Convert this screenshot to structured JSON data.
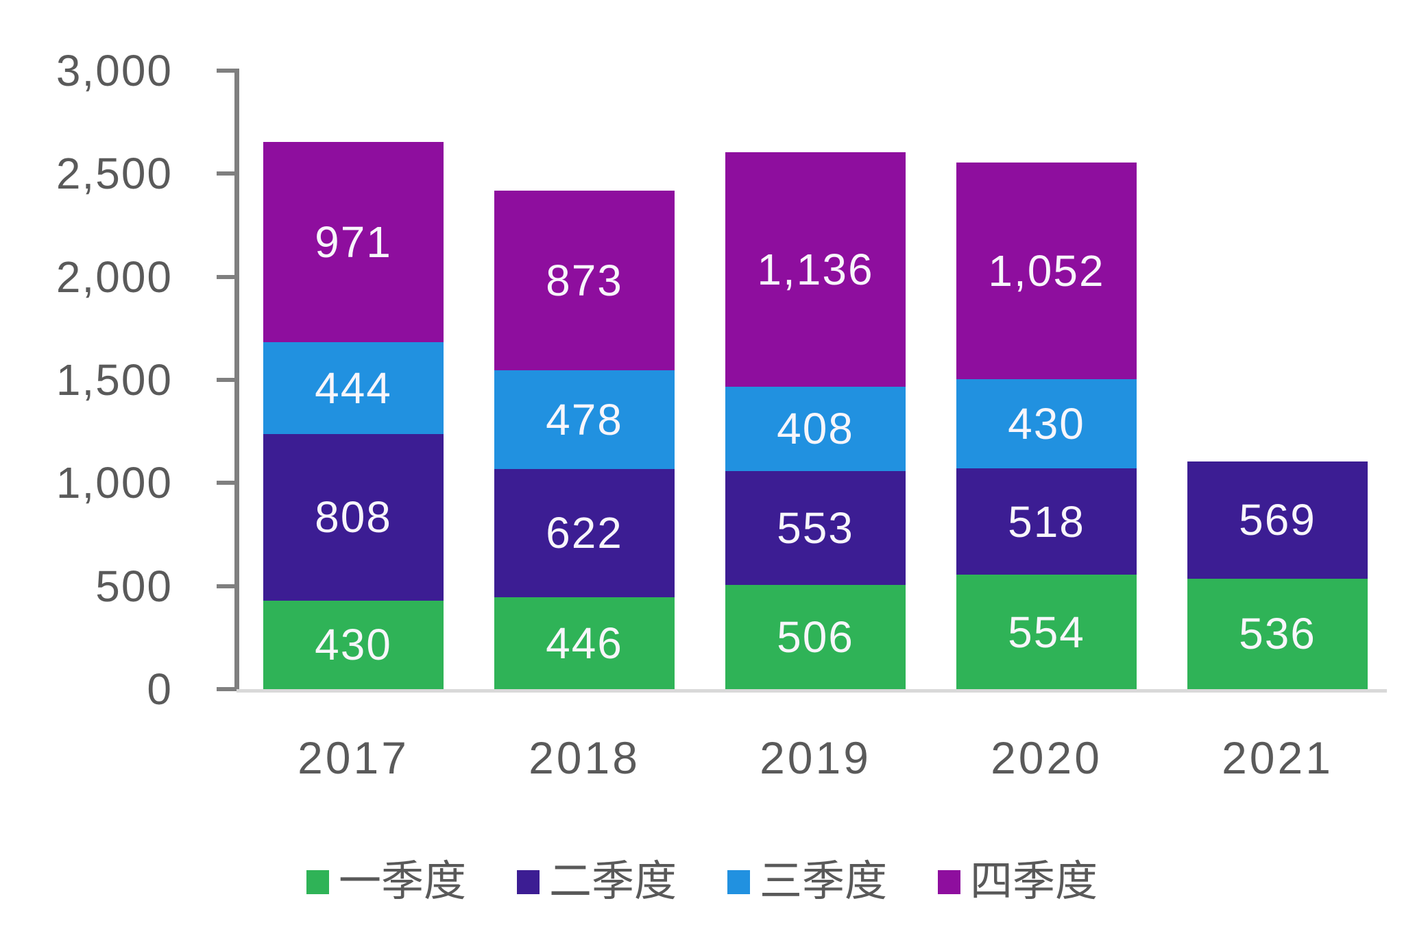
{
  "chart": {
    "background": "#ffffff",
    "axis_text_color": "#5a5a5a",
    "axis_line_color": "#7f7f7f",
    "baseline_color": "#d9d9d9",
    "value_label_color": "#f8f6fb"
  },
  "chart_data": {
    "type": "bar",
    "stacked": true,
    "title": "",
    "xlabel": "",
    "ylabel": "",
    "categories": [
      "2017",
      "2018",
      "2019",
      "2020",
      "2021"
    ],
    "series": [
      {
        "name": "一季度",
        "color": "#2fb357",
        "values": [
          430,
          446,
          506,
          554,
          536
        ]
      },
      {
        "name": "二季度",
        "color": "#3c1d93",
        "values": [
          808,
          622,
          553,
          518,
          569
        ]
      },
      {
        "name": "三季度",
        "color": "#2191e0",
        "values": [
          444,
          478,
          408,
          430,
          null
        ]
      },
      {
        "name": "四季度",
        "color": "#8e0e9e",
        "values": [
          971,
          873,
          1136,
          1052,
          null
        ]
      }
    ],
    "totals": [
      2653,
      2419,
      2603,
      2554,
      1105
    ],
    "ylim": [
      0,
      3000
    ],
    "y_tick_interval": 500,
    "y_tick_labels": [
      "0",
      "500",
      "1,000",
      "1,500",
      "2,000",
      "2,500",
      "3,000"
    ],
    "grid": false,
    "legend_position": "bottom",
    "value_labels_visible": true
  }
}
